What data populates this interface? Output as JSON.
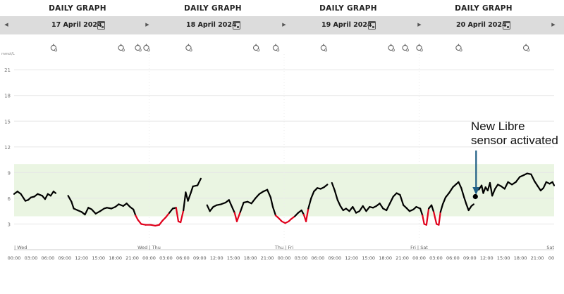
{
  "panels": [
    {
      "title": "DAILY GRAPH",
      "date": "17 April 2024"
    },
    {
      "title": "DAILY GRAPH",
      "date": "18 April 2024"
    },
    {
      "title": "DAILY GRAPH",
      "date": "19 April 2024"
    },
    {
      "title": "DAILY GRAPH",
      "date": "20 April 2024"
    }
  ],
  "nav": {
    "prev_icon": "chevron-left-icon",
    "next_icon": "chevron-right-icon",
    "calendar_icon": "calendar-icon"
  },
  "event_icon": "meal-event-icon",
  "annotation": {
    "line1": "New Libre",
    "line2": "sensor activated"
  },
  "chart_data": {
    "type": "line",
    "unit": "mmol/L",
    "ylim": [
      0,
      22
    ],
    "yticks": [
      3,
      6,
      9,
      12,
      15,
      18,
      21
    ],
    "xlim": [
      0,
      96
    ],
    "x_unit": "hours from 17 April 2024 00:00",
    "target_range": [
      3.9,
      10.0
    ],
    "low_threshold": 3.9,
    "colors": {
      "normal": "#000000",
      "low": "#e0001b",
      "target_band": "#eaf5e2",
      "grid": "#e6e6e6",
      "annotation_arrow": "#1f5f85"
    },
    "day_labels": [
      {
        "x": 0,
        "text": "| Wed"
      },
      {
        "x": 24,
        "text": "Wed | Thu"
      },
      {
        "x": 48,
        "text": "Thu | Fri"
      },
      {
        "x": 72,
        "text": "Fri | Sat"
      },
      {
        "x": 96,
        "text": "Sat"
      }
    ],
    "xtick_labels": [
      "00:00",
      "03:00",
      "06:00",
      "09:00",
      "12:00",
      "15:00",
      "18:00",
      "21:00",
      "00:00",
      "03:00",
      "06:00",
      "09:00",
      "12:00",
      "15:00",
      "18:00",
      "21:00",
      "00:00",
      "03:00",
      "06:00",
      "09:00",
      "12:00",
      "15:00",
      "18:00",
      "21:00",
      "00:00",
      "03:00",
      "06:00",
      "09:00",
      "12:00",
      "15:00",
      "18:00",
      "21:00",
      "00"
    ],
    "event_times": [
      7.0,
      19.0,
      22.0,
      23.5,
      31.0,
      43.0,
      46.5,
      55.0,
      67.0,
      69.5,
      72.0,
      79.0,
      91.0
    ],
    "series": [
      {
        "segment": 1,
        "points": [
          [
            0,
            6.5
          ],
          [
            0.6,
            6.8
          ],
          [
            1.2,
            6.5
          ],
          [
            2,
            5.7
          ],
          [
            2.5,
            5.8
          ],
          [
            3,
            6.1
          ],
          [
            3.6,
            6.2
          ],
          [
            4.2,
            6.5
          ],
          [
            5,
            6.3
          ],
          [
            5.5,
            5.9
          ],
          [
            6,
            6.5
          ],
          [
            6.5,
            6.3
          ],
          [
            7,
            6.8
          ],
          [
            7.4,
            6.6
          ]
        ]
      },
      {
        "segment": 2,
        "points": [
          [
            9.6,
            6.3
          ],
          [
            10.2,
            5.6
          ],
          [
            10.6,
            4.8
          ],
          [
            11.3,
            4.6
          ],
          [
            12,
            4.4
          ],
          [
            12.6,
            4.1
          ],
          [
            13.2,
            4.9
          ],
          [
            13.8,
            4.7
          ],
          [
            14.5,
            4.2
          ],
          [
            15.3,
            4.5
          ],
          [
            16,
            4.8
          ],
          [
            16.5,
            4.9
          ],
          [
            17.3,
            4.8
          ],
          [
            18,
            5.0
          ],
          [
            18.6,
            5.3
          ],
          [
            19.4,
            5.1
          ],
          [
            20,
            5.4
          ],
          [
            20.6,
            5.0
          ],
          [
            21.2,
            4.7
          ],
          [
            21.6,
            4.0
          ],
          [
            22,
            3.5
          ],
          [
            22.6,
            3.0
          ],
          [
            23.4,
            2.9
          ],
          [
            24.3,
            2.9
          ],
          [
            25.1,
            2.8
          ],
          [
            25.8,
            2.9
          ],
          [
            26.4,
            3.4
          ],
          [
            27,
            3.8
          ],
          [
            27.6,
            4.3
          ],
          [
            28.2,
            4.8
          ],
          [
            28.8,
            4.9
          ],
          [
            29.2,
            3.3
          ],
          [
            29.6,
            3.2
          ],
          [
            30.1,
            4.6
          ],
          [
            30.5,
            6.7
          ],
          [
            30.9,
            5.7
          ],
          [
            31.4,
            6.6
          ],
          [
            31.8,
            7.4
          ],
          [
            32.6,
            7.5
          ],
          [
            33.2,
            8.3
          ]
        ]
      },
      {
        "segment": 3,
        "points": [
          [
            34.3,
            5.2
          ],
          [
            34.8,
            4.5
          ],
          [
            35.4,
            5.0
          ],
          [
            36,
            5.2
          ],
          [
            36.8,
            5.3
          ],
          [
            37.6,
            5.5
          ],
          [
            38.2,
            5.8
          ],
          [
            38.6,
            5.2
          ],
          [
            39.2,
            4.3
          ],
          [
            39.6,
            3.3
          ],
          [
            40.2,
            4.4
          ],
          [
            40.8,
            5.5
          ],
          [
            41.5,
            5.6
          ],
          [
            42.2,
            5.4
          ],
          [
            42.9,
            6.0
          ],
          [
            43.6,
            6.5
          ],
          [
            44.3,
            6.8
          ],
          [
            45,
            7.0
          ],
          [
            45.6,
            6.1
          ],
          [
            46,
            5.0
          ],
          [
            46.5,
            4.0
          ],
          [
            47,
            3.7
          ],
          [
            47.6,
            3.3
          ],
          [
            48.2,
            3.1
          ],
          [
            48.8,
            3.3
          ],
          [
            49.3,
            3.6
          ],
          [
            49.9,
            3.9
          ],
          [
            50.5,
            4.3
          ],
          [
            51.1,
            4.6
          ],
          [
            51.5,
            4.1
          ],
          [
            51.9,
            3.3
          ],
          [
            52.3,
            4.8
          ],
          [
            52.8,
            6.0
          ],
          [
            53.3,
            6.8
          ],
          [
            53.9,
            7.2
          ],
          [
            54.5,
            7.1
          ],
          [
            55.1,
            7.3
          ],
          [
            55.7,
            7.6
          ]
        ]
      },
      {
        "segment": 4,
        "points": [
          [
            56.5,
            7.8
          ],
          [
            57,
            6.9
          ],
          [
            57.5,
            5.8
          ],
          [
            58,
            5.1
          ],
          [
            58.5,
            4.6
          ],
          [
            59,
            4.8
          ],
          [
            59.6,
            4.5
          ],
          [
            60.2,
            5.0
          ],
          [
            60.8,
            4.3
          ],
          [
            61.4,
            4.5
          ],
          [
            62,
            5.1
          ],
          [
            62.6,
            4.5
          ],
          [
            63.2,
            5.0
          ],
          [
            63.8,
            4.9
          ],
          [
            64.4,
            5.1
          ],
          [
            65,
            5.4
          ],
          [
            65.6,
            4.8
          ],
          [
            66.2,
            4.6
          ],
          [
            66.8,
            5.4
          ],
          [
            67.4,
            6.2
          ],
          [
            68,
            6.6
          ],
          [
            68.6,
            6.4
          ],
          [
            69.2,
            5.2
          ],
          [
            69.7,
            4.9
          ],
          [
            70.3,
            4.5
          ],
          [
            71,
            4.7
          ],
          [
            71.5,
            5.0
          ],
          [
            72.2,
            4.8
          ],
          [
            72.6,
            4.0
          ],
          [
            72.9,
            3.0
          ],
          [
            73.3,
            2.9
          ],
          [
            73.7,
            4.8
          ],
          [
            74.2,
            5.2
          ],
          [
            74.6,
            4.4
          ],
          [
            75.1,
            3.0
          ],
          [
            75.5,
            2.9
          ],
          [
            75.8,
            4.4
          ],
          [
            76.2,
            5.3
          ],
          [
            76.7,
            6.1
          ],
          [
            77.3,
            6.6
          ],
          [
            78,
            7.3
          ],
          [
            78.5,
            7.6
          ],
          [
            79,
            7.9
          ],
          [
            79.5,
            7.2
          ],
          [
            80,
            6.1
          ],
          [
            80.4,
            5.3
          ],
          [
            80.8,
            4.6
          ],
          [
            81.3,
            5.1
          ],
          [
            81.7,
            5.3
          ]
        ]
      },
      {
        "segment": 5,
        "points": [
          [
            82.6,
            7.0
          ],
          [
            83.1,
            7.5
          ],
          [
            83.4,
            6.6
          ],
          [
            83.8,
            7.3
          ],
          [
            84.2,
            6.9
          ],
          [
            84.6,
            7.8
          ],
          [
            85,
            6.3
          ],
          [
            85.5,
            7.1
          ],
          [
            86,
            7.6
          ],
          [
            86.6,
            7.4
          ],
          [
            87.2,
            7.1
          ],
          [
            87.8,
            7.9
          ],
          [
            88.5,
            7.6
          ],
          [
            89.2,
            7.9
          ],
          [
            89.9,
            8.5
          ],
          [
            90.6,
            8.7
          ],
          [
            91.2,
            8.9
          ],
          [
            91.9,
            8.8
          ],
          [
            92.5,
            8.0
          ],
          [
            93.1,
            7.4
          ],
          [
            93.6,
            6.9
          ],
          [
            94.1,
            7.2
          ],
          [
            94.6,
            7.9
          ],
          [
            95.2,
            7.7
          ],
          [
            95.7,
            7.9
          ],
          [
            96,
            7.5
          ]
        ]
      }
    ],
    "annotation_point": [
      82.0,
      6.2
    ]
  }
}
